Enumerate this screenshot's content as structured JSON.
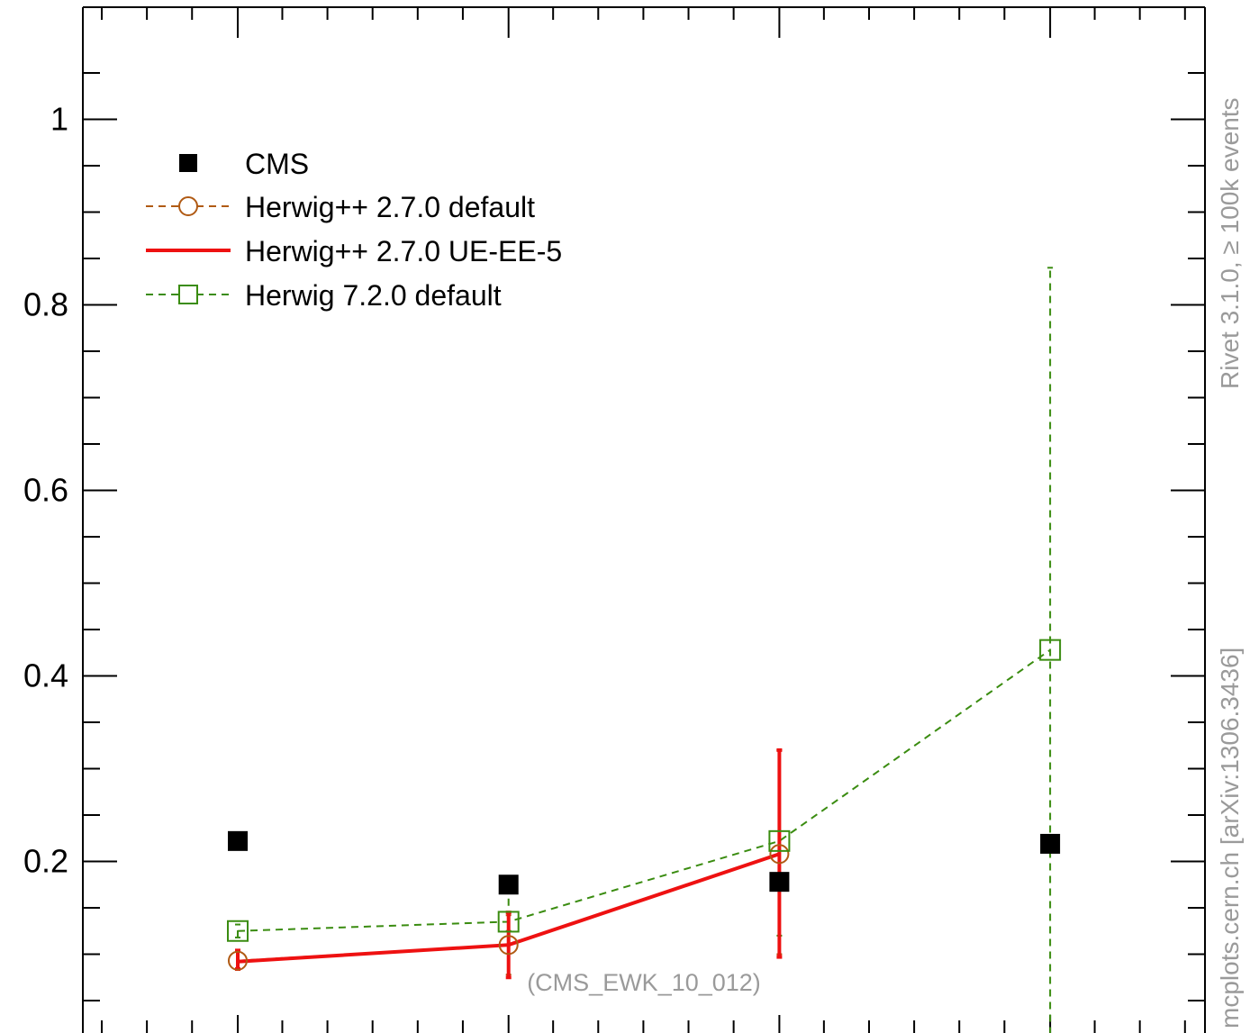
{
  "chart_data": {
    "type": "scatter",
    "title": "",
    "xlabel": "",
    "ylabel": "",
    "ylim": [
      0,
      1.12
    ],
    "yticks": [
      "0.2",
      "0.4",
      "0.6",
      "0.8",
      "1"
    ],
    "grid": false,
    "legend_position": "top-left",
    "watermark": "(CMS_EWK_10_012)",
    "side_label_top": "Rivet 3.1.0, ≥ 100k events",
    "side_label_bottom": "mcplots.cern.ch [arXiv:1306.3436]",
    "series": [
      {
        "name": "CMS",
        "color": "#000000",
        "marker": "filled-square",
        "x": [
          1,
          2,
          3,
          4
        ],
        "y": [
          0.222,
          0.175,
          0.178,
          0.219
        ]
      },
      {
        "name": "Herwig++ 2.7.0 default",
        "color": "#b05a14",
        "marker": "open-circle",
        "line": "dashed",
        "x": [
          1,
          2,
          3
        ],
        "y": [
          0.093,
          0.11,
          0.208
        ],
        "err_low": [
          0.083,
          0.078,
          0.1
        ],
        "err_high": [
          0.103,
          0.142,
          0.32
        ]
      },
      {
        "name": "Herwig++ 2.7.0 UE-EE-5",
        "color": "#ee1111",
        "marker": "none",
        "line": "solid",
        "x": [
          1,
          2,
          3
        ],
        "y": [
          0.092,
          0.11,
          0.208
        ],
        "err_low": [
          0.084,
          0.075,
          0.097
        ],
        "err_high": [
          0.104,
          0.145,
          0.32
        ]
      },
      {
        "name": "Herwig 7.2.0 default",
        "color": "#3a8c10",
        "marker": "open-square",
        "line": "dashed",
        "x": [
          1,
          2,
          3,
          4
        ],
        "y": [
          0.125,
          0.135,
          0.222,
          0.428
        ],
        "err_low": [
          0.118,
          0.125,
          0.12,
          0.0
        ],
        "err_high": [
          0.132,
          0.168,
          0.32,
          0.84
        ]
      }
    ]
  }
}
